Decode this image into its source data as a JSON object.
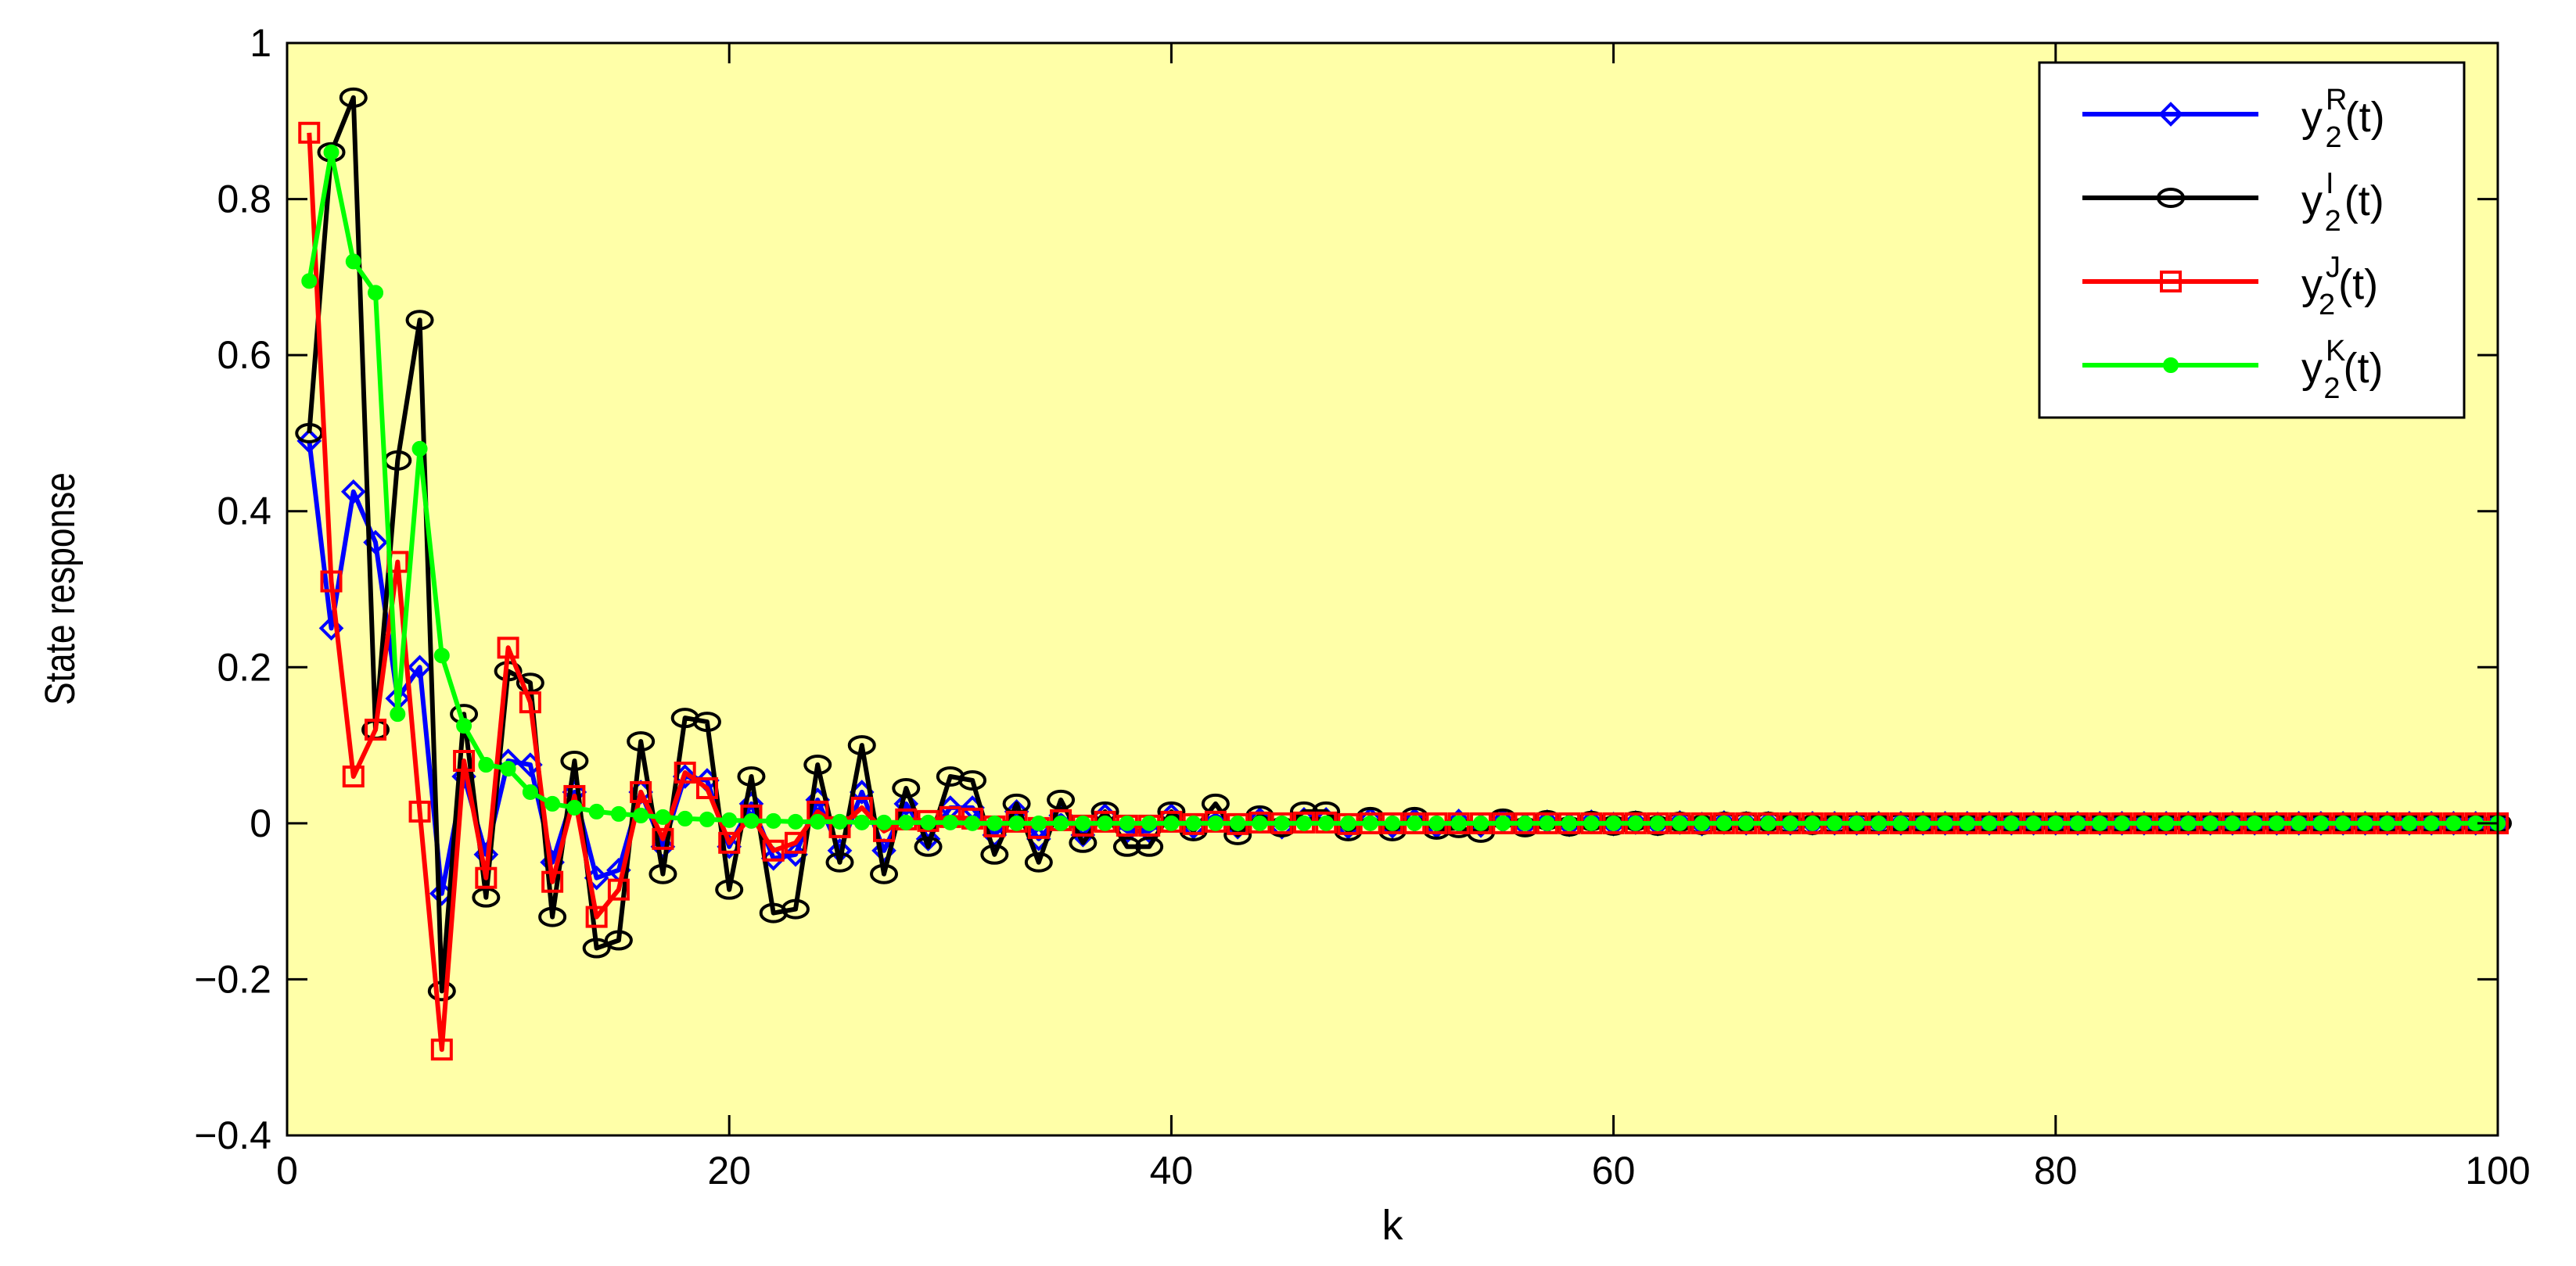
{
  "chart_data": {
    "type": "line",
    "title": "",
    "xlabel": "k",
    "ylabel": "State response",
    "xlim": [
      0,
      100
    ],
    "ylim": [
      -0.4,
      1
    ],
    "xticks": [
      "0",
      "20",
      "40",
      "60",
      "80",
      "100"
    ],
    "yticks": [
      "1",
      "0.8",
      "0.6",
      "0.4",
      "0.2",
      "0",
      "−0.2",
      "−0.4"
    ],
    "grid": false,
    "legend_position": "top-right",
    "plot_background": "#ffffa8",
    "x": [
      1,
      2,
      3,
      4,
      5,
      6,
      7,
      8,
      9,
      10,
      11,
      12,
      13,
      14,
      15,
      16,
      17,
      18,
      19,
      20,
      21,
      22,
      23,
      24,
      25,
      26,
      27,
      28,
      29,
      30,
      31,
      32,
      33,
      34,
      35,
      36,
      37,
      38,
      39,
      40,
      41,
      42,
      43,
      44,
      45,
      46,
      47,
      48,
      49,
      50,
      51,
      52,
      53,
      54,
      55,
      56,
      57,
      58,
      59,
      60,
      61,
      62,
      63,
      64,
      65,
      66,
      67,
      68,
      69,
      70,
      71,
      72,
      73,
      74,
      75,
      76,
      77,
      78,
      79,
      80,
      81,
      82,
      83,
      84,
      85,
      86,
      87,
      88,
      89,
      90,
      91,
      92,
      93,
      94,
      95,
      96,
      97,
      98,
      99,
      100
    ],
    "series": [
      {
        "name_base": "y",
        "name_sup": "R",
        "name_sub": "2",
        "name_suffix": "(t)",
        "color": "#0000ff",
        "marker": "diamond",
        "values": [
          0.49,
          0.25,
          0.425,
          0.36,
          0.16,
          0.2,
          -0.09,
          0.06,
          -0.04,
          0.08,
          0.075,
          -0.05,
          0.04,
          -0.07,
          -0.06,
          0.04,
          -0.03,
          0.06,
          0.055,
          -0.03,
          0.025,
          -0.045,
          -0.04,
          0.03,
          -0.035,
          0.04,
          -0.035,
          0.025,
          -0.02,
          0.02,
          0.02,
          -0.015,
          0.015,
          -0.02,
          0.01,
          -0.015,
          0.01,
          -0.01,
          -0.01,
          0.01,
          -0.005,
          0.01,
          -0.005,
          0.005,
          -0.005,
          0.005,
          0.005,
          -0.005,
          0.005,
          -0.004,
          0.004,
          -0.004,
          0.003,
          -0.003,
          0.003,
          -0.002,
          0.002,
          -0.002,
          0.002,
          -0.001,
          0.001,
          -0.001,
          0.001,
          -0.001,
          0.001,
          0.0,
          0.0,
          0.0,
          0.0,
          0.0,
          0.0,
          0.0,
          0.0,
          0.0,
          0.0,
          0.0,
          0.0,
          0.0,
          0.0,
          0.0,
          0.0,
          0.0,
          0.0,
          0.0,
          0.0,
          0.0,
          0.0,
          0.0,
          0.0,
          0.0,
          0.0,
          0.0,
          0.0,
          0.0,
          0.0,
          0.0,
          0.0,
          0.0,
          0.0,
          0.0
        ]
      },
      {
        "name_base": "y",
        "name_sup": "I",
        "name_sub": "2",
        "name_suffix": "(t)",
        "color": "#000000",
        "marker": "circle",
        "values": [
          0.5,
          0.86,
          0.93,
          0.12,
          0.465,
          0.645,
          -0.215,
          0.14,
          -0.095,
          0.195,
          0.18,
          -0.12,
          0.08,
          -0.16,
          -0.15,
          0.105,
          -0.065,
          0.135,
          0.13,
          -0.085,
          0.06,
          -0.115,
          -0.11,
          0.075,
          -0.05,
          0.1,
          -0.065,
          0.045,
          -0.03,
          0.06,
          0.055,
          -0.04,
          0.025,
          -0.05,
          0.03,
          -0.025,
          0.015,
          -0.03,
          -0.03,
          0.015,
          -0.01,
          0.025,
          -0.015,
          0.01,
          -0.005,
          0.015,
          0.015,
          -0.01,
          0.008,
          -0.01,
          0.008,
          -0.008,
          -0.006,
          -0.012,
          0.006,
          -0.005,
          0.004,
          -0.004,
          0.003,
          -0.003,
          0.003,
          -0.003,
          0.002,
          -0.002,
          0.002,
          0.002,
          0.002,
          -0.001,
          -0.002,
          -0.001,
          0.001,
          -0.001,
          0.001,
          0.0,
          0.0,
          0.0,
          0.0,
          0.0,
          0.0,
          0.0,
          0.0,
          0.0,
          0.0,
          0.0,
          0.0,
          0.0,
          0.0,
          0.0,
          0.0,
          0.0,
          0.0,
          0.0,
          0.0,
          0.0,
          0.0,
          0.0,
          0.0,
          0.0,
          0.0,
          0.0
        ]
      },
      {
        "name_base": "y",
        "name_sup": "J",
        "name_sub": "2",
        "name_suffix": "(t)",
        "color": "#ff0000",
        "marker": "square",
        "values": [
          0.885,
          0.31,
          0.06,
          0.12,
          0.335,
          0.015,
          -0.29,
          0.08,
          -0.07,
          0.225,
          0.155,
          -0.075,
          0.035,
          -0.12,
          -0.085,
          0.04,
          -0.02,
          0.065,
          0.045,
          -0.025,
          0.01,
          -0.035,
          -0.025,
          0.015,
          -0.005,
          0.02,
          -0.01,
          0.005,
          0.003,
          0.008,
          0.006,
          -0.004,
          0.002,
          -0.006,
          0.004,
          -0.003,
          0.002,
          -0.003,
          -0.003,
          0.002,
          -0.001,
          0.002,
          -0.001,
          0.001,
          0.0,
          0.001,
          0.001,
          -0.001,
          0.0,
          0.0,
          0.0,
          0.0,
          0.0,
          0.0,
          0.0,
          0.0,
          0.0,
          0.0,
          0.0,
          0.0,
          0.0,
          0.0,
          0.0,
          0.0,
          0.0,
          0.0,
          0.0,
          0.0,
          0.0,
          0.0,
          0.0,
          0.0,
          0.0,
          0.0,
          0.0,
          0.0,
          0.0,
          0.0,
          0.0,
          0.0,
          0.0,
          0.0,
          0.0,
          0.0,
          0.0,
          0.0,
          0.0,
          0.0,
          0.0,
          0.0,
          0.0,
          0.0,
          0.0,
          0.0,
          0.0,
          0.0,
          0.0,
          0.0,
          0.0,
          0.0
        ]
      },
      {
        "name_base": "y",
        "name_sup": "K",
        "name_sub": "2",
        "name_suffix": "(t)",
        "color": "#00ff00",
        "marker": "star",
        "values": [
          0.695,
          0.86,
          0.72,
          0.68,
          0.14,
          0.48,
          0.215,
          0.125,
          0.075,
          0.07,
          0.04,
          0.025,
          0.02,
          0.015,
          0.012,
          0.01,
          0.008,
          0.006,
          0.005,
          0.004,
          0.003,
          0.003,
          0.002,
          0.002,
          0.002,
          0.001,
          0.001,
          0.001,
          0.001,
          0.001,
          0.0,
          0.0,
          0.0,
          0.0,
          0.0,
          0.0,
          0.0,
          0.0,
          0.0,
          0.0,
          0.0,
          0.0,
          0.0,
          0.0,
          0.0,
          0.0,
          0.0,
          0.0,
          0.0,
          0.0,
          0.0,
          0.0,
          0.0,
          0.0,
          0.0,
          0.0,
          0.0,
          0.0,
          0.0,
          0.0,
          0.0,
          0.0,
          0.0,
          0.0,
          0.0,
          0.0,
          0.0,
          0.0,
          0.0,
          0.0,
          0.0,
          0.0,
          0.0,
          0.0,
          0.0,
          0.0,
          0.0,
          0.0,
          0.0,
          0.0,
          0.0,
          0.0,
          0.0,
          0.0,
          0.0,
          0.0,
          0.0,
          0.0,
          0.0,
          0.0,
          0.0,
          0.0,
          0.0,
          0.0,
          0.0,
          0.0,
          0.0,
          0.0,
          0.0,
          0.0
        ]
      }
    ]
  }
}
